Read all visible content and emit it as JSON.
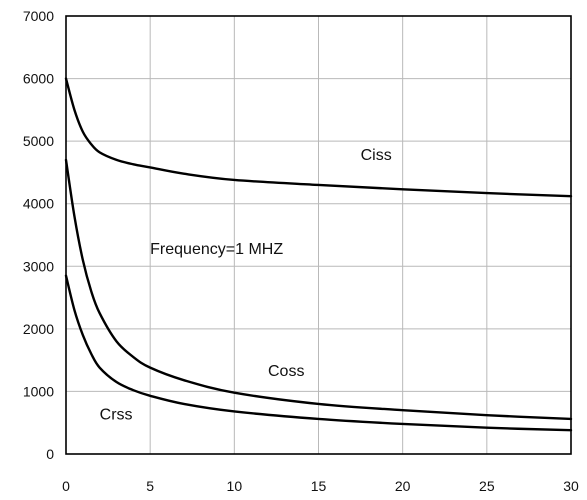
{
  "chart_data": {
    "type": "line",
    "title": "",
    "xlabel": "",
    "ylabel": "",
    "xlim": [
      0,
      30
    ],
    "ylim": [
      0,
      7000
    ],
    "xticks": [
      0,
      5,
      10,
      15,
      20,
      25,
      30
    ],
    "yticks": [
      0,
      1000,
      2000,
      3000,
      4000,
      5000,
      6000,
      7000
    ],
    "grid": true,
    "legend": "none",
    "series": [
      {
        "name": "Ciss",
        "x": [
          0,
          0.5,
          1,
          1.5,
          2,
          3,
          4,
          5,
          7,
          10,
          15,
          20,
          25,
          30
        ],
        "y": [
          6000,
          5500,
          5150,
          4950,
          4820,
          4700,
          4630,
          4580,
          4480,
          4380,
          4300,
          4230,
          4170,
          4120
        ]
      },
      {
        "name": "Coss",
        "x": [
          0,
          0.5,
          1,
          1.5,
          2,
          3,
          4,
          5,
          7,
          10,
          15,
          20,
          25,
          30
        ],
        "y": [
          4700,
          3800,
          3100,
          2600,
          2250,
          1800,
          1550,
          1380,
          1180,
          980,
          800,
          700,
          620,
          560
        ]
      },
      {
        "name": "Crss",
        "x": [
          0,
          0.5,
          1,
          1.5,
          2,
          3,
          4,
          5,
          7,
          10,
          15,
          20,
          25,
          30
        ],
        "y": [
          2850,
          2300,
          1900,
          1600,
          1380,
          1150,
          1020,
          930,
          800,
          680,
          560,
          480,
          420,
          380
        ]
      }
    ],
    "annotations": [
      {
        "text": "Ciss",
        "x": 17.5,
        "y": 4700
      },
      {
        "text": "Frequency=1 MHZ",
        "x": 5,
        "y": 3200
      },
      {
        "text": "Coss",
        "x": 12,
        "y": 1250
      },
      {
        "text": "Crss",
        "x": 2,
        "y": 550
      }
    ],
    "colors": {
      "line": "#000000",
      "grid": "#b9b9b9",
      "frame": "#000000"
    }
  }
}
